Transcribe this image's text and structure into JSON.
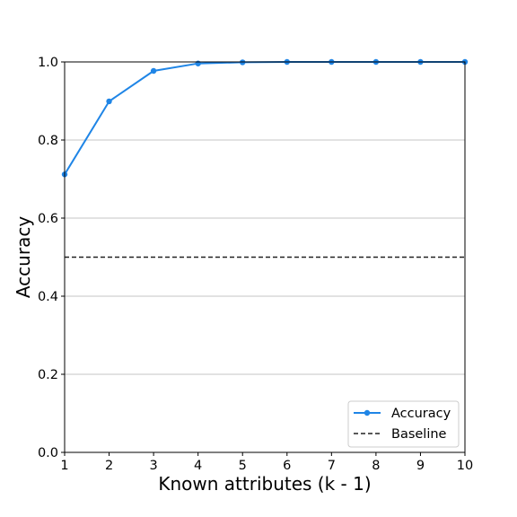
{
  "chart_data": {
    "type": "line",
    "xlabel": "Known attributes (k - 1)",
    "ylabel": "Accuracy",
    "xlim": [
      1,
      10
    ],
    "ylim": [
      0.0,
      1.0
    ],
    "x": [
      1,
      2,
      3,
      4,
      5,
      6,
      7,
      8,
      9,
      10
    ],
    "x_ticks": [
      "1",
      "2",
      "3",
      "4",
      "5",
      "6",
      "7",
      "8",
      "9",
      "10"
    ],
    "y_ticks": [
      "0.0",
      "0.2",
      "0.4",
      "0.6",
      "0.8",
      "1.0"
    ],
    "grid": "horizontal",
    "legend_position": "lower-right",
    "series": [
      {
        "name": "Accuracy",
        "style": "solid-with-circle-markers",
        "color": "#1f85e6",
        "values": [
          0.712,
          0.899,
          0.977,
          0.996,
          0.999,
          1.0,
          1.0,
          1.0,
          1.0,
          1.0
        ]
      }
    ],
    "reference_lines": [
      {
        "name": "Baselline",
        "label": "Baseline",
        "style": "dashed",
        "color": "#222222",
        "y": 0.5
      }
    ]
  }
}
